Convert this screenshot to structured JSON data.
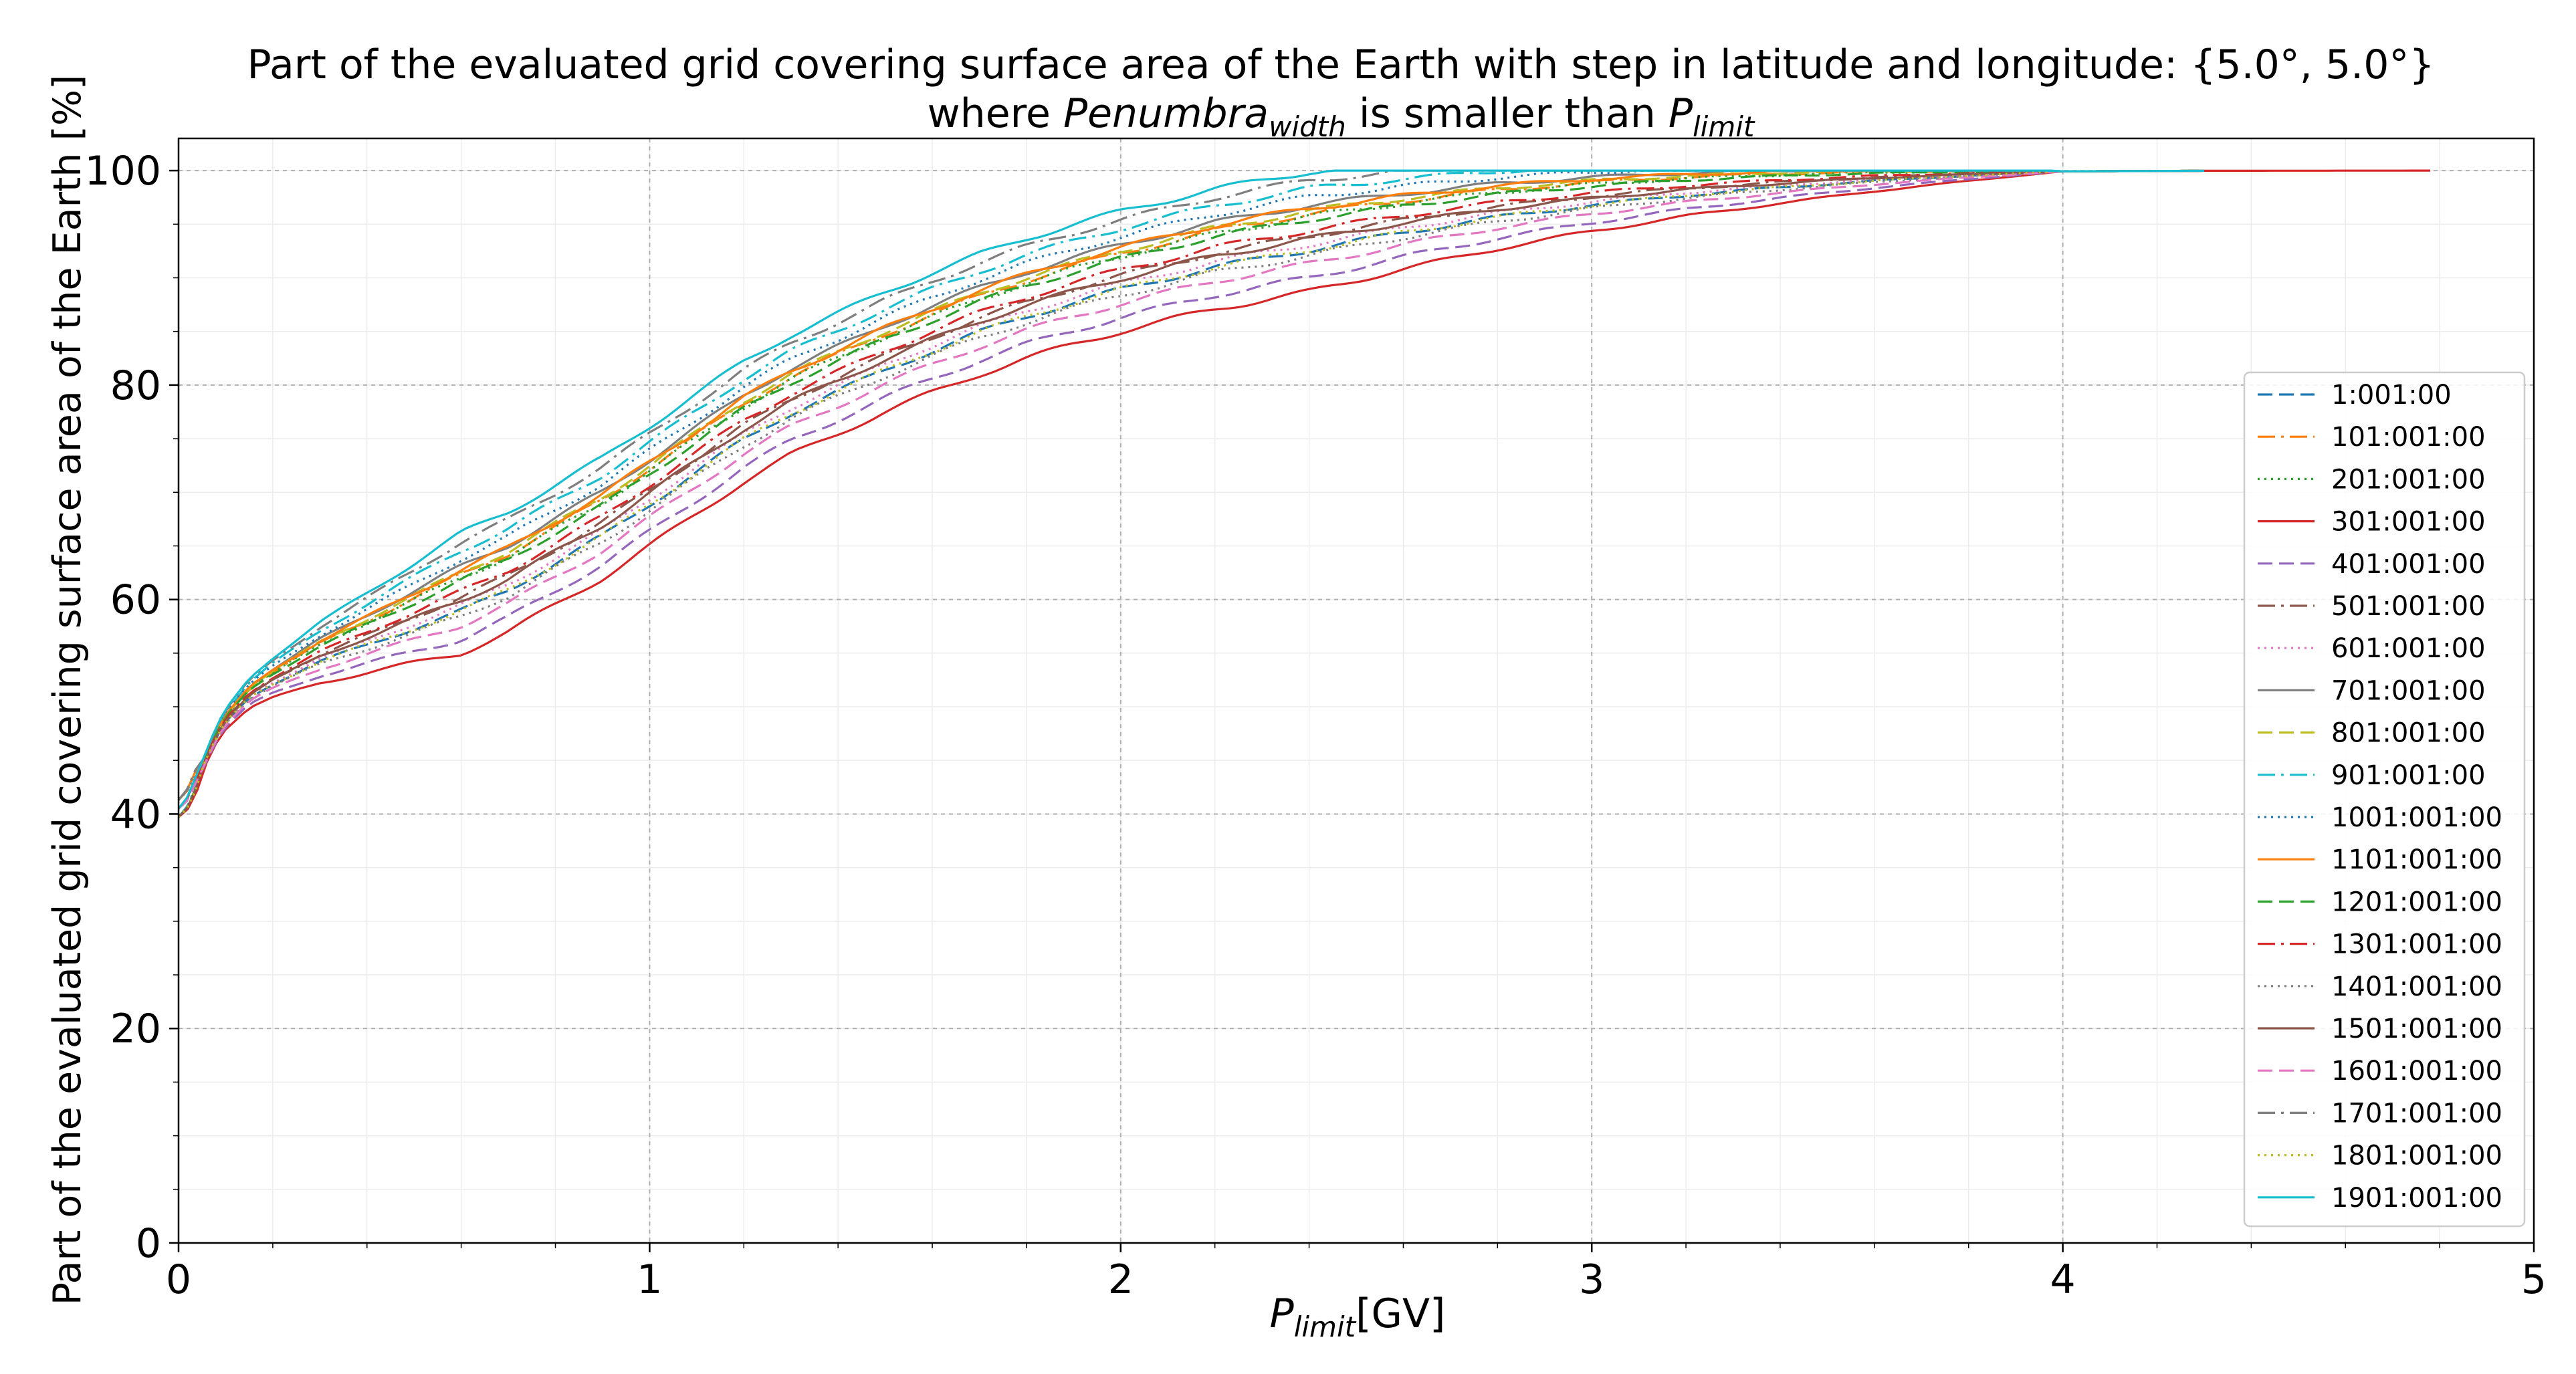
{
  "chart_data": {
    "type": "line",
    "title_line1": "Part of the evaluated grid covering surface area of the Earth with step in latitude and longitude: {5.0°, 5.0°}",
    "title_line2": {
      "pre": "where ",
      "var": "Penumbra",
      "var_sub": "width",
      "mid": " is smaller than ",
      "lim": "P",
      "lim_sub": "limit"
    },
    "xlabel": {
      "var": "P",
      "sub": "limit",
      "unit": "[GV]"
    },
    "ylabel": "Part of the evaluated grid covering surface area of the Earth  [%]",
    "xlim": [
      0,
      5
    ],
    "ylim": [
      0,
      103
    ],
    "xticks": [
      0,
      1,
      2,
      3,
      4,
      5
    ],
    "yticks": [
      0,
      20,
      40,
      60,
      80,
      100
    ],
    "grid": true,
    "minor_grid": true,
    "legend_position": "center-right",
    "base_curve": {
      "x": [
        0,
        0.02,
        0.05,
        0.08,
        0.1,
        0.15,
        0.2,
        0.3,
        0.4,
        0.5,
        0.6,
        0.7,
        0.8,
        0.9,
        1.0,
        1.1,
        1.2,
        1.3,
        1.4,
        1.5,
        1.6,
        1.7,
        1.8,
        1.9,
        2.0,
        2.2,
        2.4,
        2.6,
        2.8,
        3.0,
        3.2,
        3.4,
        3.6,
        3.8,
        4.0,
        4.3,
        4.78
      ],
      "y": [
        40.5,
        41.5,
        44.5,
        47.5,
        49,
        51.5,
        53,
        55.5,
        57.5,
        59.5,
        61.5,
        63.5,
        66,
        68.5,
        71.5,
        74.5,
        77.5,
        80,
        82,
        84,
        85.8,
        87.5,
        89,
        90.3,
        91.5,
        93.6,
        95.2,
        96.5,
        97.6,
        98.4,
        99,
        99.4,
        99.7,
        99.85,
        99.93,
        99.98,
        100
      ]
    },
    "series": [
      {
        "name": "1:001:00",
        "color": "#1f77b4",
        "dash": "dashed",
        "offset": -1.0,
        "x_end": 4.3
      },
      {
        "name": "101:001:00",
        "color": "#ff7f0e",
        "dash": "dashdot",
        "offset": 0.3,
        "x_end": 4.3
      },
      {
        "name": "201:001:00",
        "color": "#2ca02c",
        "dash": "dotted",
        "offset": 0.2,
        "x_end": 4.3
      },
      {
        "name": "301:001:00",
        "color": "#d62728",
        "dash": "solid",
        "offset": -2.5,
        "x_end": 4.78
      },
      {
        "name": "401:001:00",
        "color": "#9467bd",
        "dash": "dashed",
        "offset": -2.0,
        "x_end": 4.3
      },
      {
        "name": "501:001:00",
        "color": "#8c564b",
        "dash": "dashdot",
        "offset": -0.5,
        "x_end": 4.3
      },
      {
        "name": "601:001:00",
        "color": "#e377c2",
        "dash": "dotted",
        "offset": -0.8,
        "x_end": 4.3
      },
      {
        "name": "701:001:00",
        "color": "#7f7f7f",
        "dash": "solid",
        "offset": 0.6,
        "x_end": 4.3
      },
      {
        "name": "801:001:00",
        "color": "#bcbd22",
        "dash": "dashed",
        "offset": 0.4,
        "x_end": 4.3
      },
      {
        "name": "901:001:00",
        "color": "#17becf",
        "dash": "dashdot",
        "offset": 1.2,
        "x_end": 4.3
      },
      {
        "name": "1001:001:00",
        "color": "#1f77b4",
        "dash": "dotted",
        "offset": 0.9,
        "x_end": 4.3
      },
      {
        "name": "1101:001:00",
        "color": "#ff7f0e",
        "dash": "solid",
        "offset": 0.5,
        "x_end": 4.3
      },
      {
        "name": "1201:001:00",
        "color": "#2ca02c",
        "dash": "dashed",
        "offset": 0.1,
        "x_end": 4.3
      },
      {
        "name": "1301:001:00",
        "color": "#d62728",
        "dash": "dashdot",
        "offset": -0.3,
        "x_end": 4.3
      },
      {
        "name": "1401:001:00",
        "color": "#7f7f7f",
        "dash": "dotted",
        "offset": -1.2,
        "x_end": 4.3
      },
      {
        "name": "1501:001:00",
        "color": "#8c564b",
        "dash": "solid",
        "offset": -0.6,
        "x_end": 4.3
      },
      {
        "name": "1601:001:00",
        "color": "#e377c2",
        "dash": "dashed",
        "offset": -1.5,
        "x_end": 4.3
      },
      {
        "name": "1701:001:00",
        "color": "#7f7f7f",
        "dash": "dashdot",
        "offset": 1.5,
        "x_end": 4.3
      },
      {
        "name": "1801:001:00",
        "color": "#bcbd22",
        "dash": "dotted",
        "offset": -1.0,
        "x_end": 4.3
      },
      {
        "name": "1901:001:00",
        "color": "#17becf",
        "dash": "solid",
        "offset": 1.8,
        "x_end": 4.3
      }
    ]
  }
}
